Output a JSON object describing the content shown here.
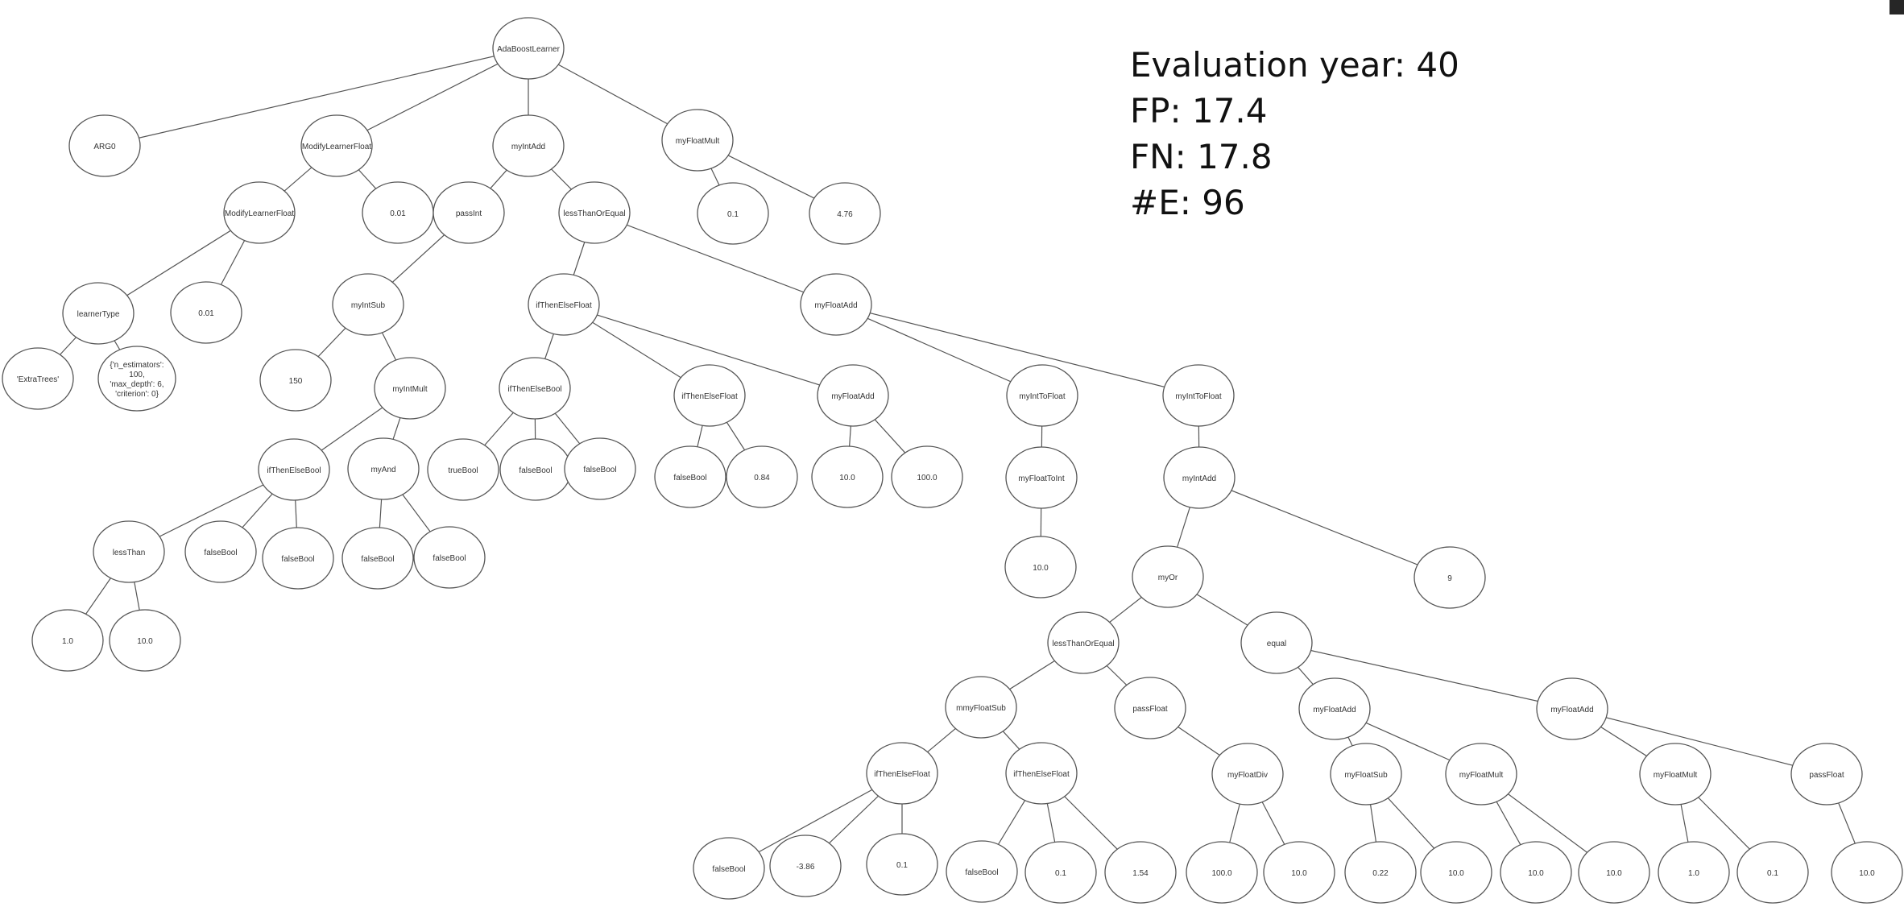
{
  "stats": {
    "evaluation_year": "Evaluation year: 40",
    "fp": "FP: 17.4",
    "fn": "FN: 17.8",
    "e": "#E: 96"
  },
  "tree": {
    "nodes": [
      {
        "id": "root",
        "label": "AdaBoostLearner"
      },
      {
        "id": "arg0",
        "label": "ARG0"
      },
      {
        "id": "mlf1",
        "label": "ModifyLearnerFloat"
      },
      {
        "id": "intadd1",
        "label": "myIntAdd"
      },
      {
        "id": "fmult1",
        "label": "myFloatMult"
      },
      {
        "id": "mlf2",
        "label": "ModifyLearnerFloat"
      },
      {
        "id": "v001a",
        "label": "0.01"
      },
      {
        "id": "passint",
        "label": "passInt"
      },
      {
        "id": "ltoe1",
        "label": "lessThanOrEqual"
      },
      {
        "id": "v01a",
        "label": "0.1"
      },
      {
        "id": "v476",
        "label": "4.76"
      },
      {
        "id": "ltype",
        "label": "learnerType"
      },
      {
        "id": "v001b",
        "label": "0.01"
      },
      {
        "id": "intsub",
        "label": "myIntSub"
      },
      {
        "id": "itef1",
        "label": "ifThenElseFloat"
      },
      {
        "id": "fadd1",
        "label": "myFloatAdd"
      },
      {
        "id": "extratrees",
        "label": "'ExtraTrees'"
      },
      {
        "id": "params",
        "label": "{'n_estimators': 100, 'max_depth': 6, 'criterion': 0}"
      },
      {
        "id": "v150",
        "label": "150"
      },
      {
        "id": "intmult",
        "label": "myIntMult"
      },
      {
        "id": "iteb1",
        "label": "ifThenElseBool"
      },
      {
        "id": "itef2",
        "label": "ifThenElseFloat"
      },
      {
        "id": "fadd2",
        "label": "myFloatAdd"
      },
      {
        "id": "itf1",
        "label": "myIntToFloat"
      },
      {
        "id": "itf2",
        "label": "myIntToFloat"
      },
      {
        "id": "iteb2",
        "label": "ifThenElseBool"
      },
      {
        "id": "myand",
        "label": "myAnd"
      },
      {
        "id": "trueb",
        "label": "trueBool"
      },
      {
        "id": "fb1",
        "label": "falseBool"
      },
      {
        "id": "fb2",
        "label": "falseBool"
      },
      {
        "id": "fb3",
        "label": "falseBool"
      },
      {
        "id": "v084",
        "label": "0.84"
      },
      {
        "id": "v100a",
        "label": "10.0"
      },
      {
        "id": "v1000",
        "label": "100.0"
      },
      {
        "id": "fti",
        "label": "myFloatToInt"
      },
      {
        "id": "intadd2",
        "label": "myIntAdd"
      },
      {
        "id": "lessthan",
        "label": "lessThan"
      },
      {
        "id": "fb4",
        "label": "falseBool"
      },
      {
        "id": "fb5",
        "label": "falseBool"
      },
      {
        "id": "fb6",
        "label": "falseBool"
      },
      {
        "id": "fb7",
        "label": "falseBool"
      },
      {
        "id": "v100b",
        "label": "10.0"
      },
      {
        "id": "myor",
        "label": "myOr"
      },
      {
        "id": "v9",
        "label": "9"
      },
      {
        "id": "v10",
        "label": "1.0"
      },
      {
        "id": "v100c",
        "label": "10.0"
      },
      {
        "id": "ltoe2",
        "label": "lessThanOrEqual"
      },
      {
        "id": "equal",
        "label": "equal"
      },
      {
        "id": "mmfsub",
        "label": "mmyFloatSub"
      },
      {
        "id": "passf1",
        "label": "passFloat"
      },
      {
        "id": "fadd3",
        "label": "myFloatAdd"
      },
      {
        "id": "fadd4",
        "label": "myFloatAdd"
      },
      {
        "id": "itef3",
        "label": "ifThenElseFloat"
      },
      {
        "id": "itef4",
        "label": "ifThenElseFloat"
      },
      {
        "id": "fdiv",
        "label": "myFloatDiv"
      },
      {
        "id": "fsub",
        "label": "myFloatSub"
      },
      {
        "id": "fmult2",
        "label": "myFloatMult"
      },
      {
        "id": "fmult3",
        "label": "myFloatMult"
      },
      {
        "id": "passf2",
        "label": "passFloat"
      },
      {
        "id": "fb8",
        "label": "falseBool"
      },
      {
        "id": "vn386",
        "label": "-3.86"
      },
      {
        "id": "v01b",
        "label": "0.1"
      },
      {
        "id": "fb9",
        "label": "falseBool"
      },
      {
        "id": "v01c",
        "label": "0.1"
      },
      {
        "id": "v154",
        "label": "1.54"
      },
      {
        "id": "v1000b",
        "label": "100.0"
      },
      {
        "id": "v100d",
        "label": "10.0"
      },
      {
        "id": "v022",
        "label": "0.22"
      },
      {
        "id": "v100e",
        "label": "10.0"
      },
      {
        "id": "v100f",
        "label": "10.0"
      },
      {
        "id": "v100g",
        "label": "10.0"
      },
      {
        "id": "v10b",
        "label": "1.0"
      },
      {
        "id": "v01d",
        "label": "0.1"
      },
      {
        "id": "v100h",
        "label": "10.0"
      }
    ],
    "edges": [
      [
        "root",
        "arg0"
      ],
      [
        "root",
        "mlf1"
      ],
      [
        "root",
        "intadd1"
      ],
      [
        "root",
        "fmult1"
      ],
      [
        "mlf1",
        "mlf2"
      ],
      [
        "mlf1",
        "v001a"
      ],
      [
        "intadd1",
        "passint"
      ],
      [
        "intadd1",
        "ltoe1"
      ],
      [
        "fmult1",
        "v01a"
      ],
      [
        "fmult1",
        "v476"
      ],
      [
        "mlf2",
        "ltype"
      ],
      [
        "mlf2",
        "v001b"
      ],
      [
        "passint",
        "intsub"
      ],
      [
        "ltoe1",
        "itef1"
      ],
      [
        "ltoe1",
        "fadd1"
      ],
      [
        "ltype",
        "extratrees"
      ],
      [
        "ltype",
        "params"
      ],
      [
        "intsub",
        "v150"
      ],
      [
        "intsub",
        "intmult"
      ],
      [
        "itef1",
        "iteb1"
      ],
      [
        "itef1",
        "itef2"
      ],
      [
        "itef1",
        "fadd2"
      ],
      [
        "fadd1",
        "itf1"
      ],
      [
        "fadd1",
        "itf2"
      ],
      [
        "intmult",
        "iteb2"
      ],
      [
        "intmult",
        "myand"
      ],
      [
        "iteb1",
        "trueb"
      ],
      [
        "iteb1",
        "fb1"
      ],
      [
        "iteb1",
        "fb2"
      ],
      [
        "itef2",
        "fb3"
      ],
      [
        "itef2",
        "v084"
      ],
      [
        "fadd2",
        "v100a"
      ],
      [
        "fadd2",
        "v1000"
      ],
      [
        "itf1",
        "fti"
      ],
      [
        "itf2",
        "intadd2"
      ],
      [
        "iteb2",
        "lessthan"
      ],
      [
        "iteb2",
        "fb4"
      ],
      [
        "iteb2",
        "fb5"
      ],
      [
        "myand",
        "fb6"
      ],
      [
        "myand",
        "fb7"
      ],
      [
        "fti",
        "v100b"
      ],
      [
        "intadd2",
        "myor"
      ],
      [
        "intadd2",
        "v9"
      ],
      [
        "lessthan",
        "v10"
      ],
      [
        "lessthan",
        "v100c"
      ],
      [
        "myor",
        "ltoe2"
      ],
      [
        "myor",
        "equal"
      ],
      [
        "ltoe2",
        "mmfsub"
      ],
      [
        "ltoe2",
        "passf1"
      ],
      [
        "equal",
        "fadd3"
      ],
      [
        "equal",
        "fadd4"
      ],
      [
        "mmfsub",
        "itef3"
      ],
      [
        "mmfsub",
        "itef4"
      ],
      [
        "passf1",
        "fdiv"
      ],
      [
        "fadd3",
        "fsub"
      ],
      [
        "fadd3",
        "fmult2"
      ],
      [
        "fadd4",
        "fmult3"
      ],
      [
        "fadd4",
        "passf2"
      ],
      [
        "itef3",
        "fb8"
      ],
      [
        "itef3",
        "vn386"
      ],
      [
        "itef3",
        "v01b"
      ],
      [
        "itef4",
        "fb9"
      ],
      [
        "itef4",
        "v01c"
      ],
      [
        "itef4",
        "v154"
      ],
      [
        "fdiv",
        "v1000b"
      ],
      [
        "fdiv",
        "v100d"
      ],
      [
        "fsub",
        "v022"
      ],
      [
        "fsub",
        "v100e"
      ],
      [
        "fmult2",
        "v100f"
      ],
      [
        "fmult2",
        "v100g"
      ],
      [
        "fmult3",
        "v10b"
      ],
      [
        "fmult3",
        "v01d"
      ],
      [
        "passf2",
        "v100h"
      ]
    ]
  }
}
